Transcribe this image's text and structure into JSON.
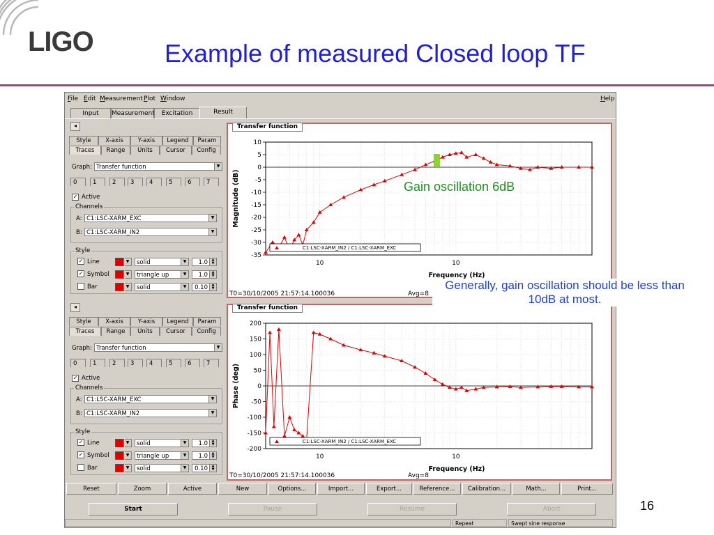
{
  "slide": {
    "logo_text": "LIGO",
    "title": "Example of measured Closed loop TF",
    "page_number": "16",
    "accent_color": "#b0368f",
    "title_color": "#1f1fd6"
  },
  "menubar": {
    "items": [
      "File",
      "Edit",
      "Measurement",
      "Plot",
      "Window"
    ],
    "help": "Help"
  },
  "main_tabs": [
    "Input",
    "Measurement",
    "Excitation",
    "Result"
  ],
  "active_tab": "Result",
  "panels": [
    {
      "subtabs_row1": [
        "Style",
        "X-axis",
        "Y-axis",
        "Legend",
        "Param"
      ],
      "subtabs_row2": [
        "Traces",
        "Range",
        "Units",
        "Cursor",
        "Config"
      ],
      "graph_label": "Graph:",
      "graph_value": "Transfer function",
      "trace_tabs": [
        "0",
        "1",
        "2",
        "3",
        "4",
        "5",
        "6",
        "7"
      ],
      "active_label": "Active",
      "channels_label": "Channels",
      "channel_a_label": "A:",
      "channel_a": "C1:LSC-XARM_EXC",
      "channel_b_label": "B:",
      "channel_b": "C1:LSC-XARM_IN2",
      "style_label": "Style",
      "line_label": "Line",
      "line_style": "solid",
      "line_width": "1.0",
      "symbol_label": "Symbol",
      "symbol_style": "triangle up",
      "symbol_size": "1.0",
      "bar_label": "Bar",
      "bar_style": "solid",
      "bar_width": "0.10"
    },
    {
      "subtabs_row1": [
        "Style",
        "X-axis",
        "Y-axis",
        "Legend",
        "Param"
      ],
      "subtabs_row2": [
        "Traces",
        "Range",
        "Units",
        "Cursor",
        "Config"
      ],
      "graph_label": "Graph:",
      "graph_value": "Transfer function",
      "trace_tabs": [
        "0",
        "1",
        "2",
        "3",
        "4",
        "5",
        "6",
        "7"
      ],
      "active_label": "Active",
      "channels_label": "Channels",
      "channel_a_label": "A:",
      "channel_a": "C1:LSC-XARM_EXC",
      "channel_b_label": "B:",
      "channel_b": "C1:LSC-XARM_IN2",
      "style_label": "Style",
      "line_label": "Line",
      "line_style": "solid",
      "line_width": "1.0",
      "symbol_label": "Symbol",
      "symbol_style": "triangle up",
      "symbol_size": "1.0",
      "bar_label": "Bar",
      "bar_style": "solid",
      "bar_width": "0.10"
    }
  ],
  "plots": [
    {
      "title": "Transfer function",
      "status_left": "T0=30/10/2005 21:57:14.100036",
      "status_right": "Avg=8",
      "xlabel": "Frequency (Hz)"
    },
    {
      "title": "Transfer function",
      "status_left": "T0=30/10/2005 21:57:14.100036",
      "status_right": "Avg=8",
      "xlabel": "Frequency (Hz)"
    }
  ],
  "chart_data": [
    {
      "type": "line",
      "title": "Transfer function",
      "xlabel": "Frequency (Hz)",
      "ylabel": "Magnitude (dB)",
      "xscale": "log",
      "ylim": [
        -35,
        10
      ],
      "yticks": [
        10,
        5,
        0,
        -5,
        -10,
        -15,
        -20,
        -25,
        -30,
        -35
      ],
      "xtick_labels": [
        "10",
        "10"
      ],
      "legend": "C1:LSC-XARM_IN2 / C1:LSC-XARM_EXC",
      "legend_placement": "bottom",
      "grid": true,
      "color": "#e00000",
      "series": [
        {
          "x": [
            4,
            4.5,
            5,
            5.5,
            6,
            6.5,
            7,
            7.5,
            8,
            9,
            10,
            12,
            15,
            20,
            25,
            30,
            40,
            50,
            60,
            70,
            80,
            90,
            100,
            110,
            120,
            140,
            160,
            180,
            200,
            250,
            300,
            350,
            400,
            500,
            600,
            800,
            1000
          ],
          "y": [
            -34,
            -30,
            -32,
            -28,
            -33,
            -29,
            -27,
            -31,
            -25,
            -22,
            -18,
            -15,
            -12,
            -9,
            -7,
            -5.5,
            -3,
            -1,
            1,
            2.5,
            4,
            5,
            5.5,
            5.8,
            4,
            5,
            3.5,
            2,
            1,
            0.5,
            -0.5,
            -1,
            0,
            -0.5,
            0,
            0,
            0
          ]
        }
      ]
    },
    {
      "type": "line",
      "title": "Transfer function",
      "xlabel": "Frequency (Hz)",
      "ylabel": "Phase (deg)",
      "xscale": "log",
      "ylim": [
        -200,
        200
      ],
      "yticks": [
        200,
        150,
        100,
        50,
        0,
        -50,
        -100,
        -150,
        -200
      ],
      "xtick_labels": [
        "10",
        "10"
      ],
      "legend": "C1:LSC-XARM_IN2 / C1:LSC-XARM_EXC",
      "legend_placement": "bottom",
      "grid": true,
      "color": "#e00000",
      "series": [
        {
          "x": [
            4,
            4.3,
            4.6,
            5,
            5.5,
            6,
            6.5,
            7,
            7.5,
            8,
            9,
            10,
            12,
            15,
            20,
            25,
            30,
            40,
            50,
            60,
            70,
            80,
            90,
            100,
            110,
            120,
            140,
            160,
            200,
            250,
            300,
            400,
            500,
            600,
            800,
            1000
          ],
          "y": [
            -150,
            170,
            -130,
            180,
            -160,
            -100,
            -140,
            -150,
            -160,
            -170,
            170,
            165,
            150,
            130,
            115,
            105,
            95,
            80,
            60,
            40,
            20,
            5,
            -5,
            -10,
            -5,
            -15,
            -10,
            -5,
            -3,
            -2,
            -5,
            -3,
            -2,
            -2,
            -3,
            -3
          ]
        }
      ]
    }
  ],
  "action_buttons": [
    "Reset",
    "Zoom",
    "Active",
    "New",
    "Options...",
    "Import...",
    "Export...",
    "Reference...",
    "Calibration...",
    "Math...",
    "Print..."
  ],
  "control_buttons": {
    "start": "Start",
    "pause": "Pause",
    "resume": "Resume",
    "abort": "Abort"
  },
  "statusbar": {
    "repeat": "Repeat",
    "mode": "Swept sine response"
  },
  "annotations": {
    "gain": "Gain oscillation 6dB",
    "note": "Generally, gain oscillation should be less than 10dB at most."
  }
}
